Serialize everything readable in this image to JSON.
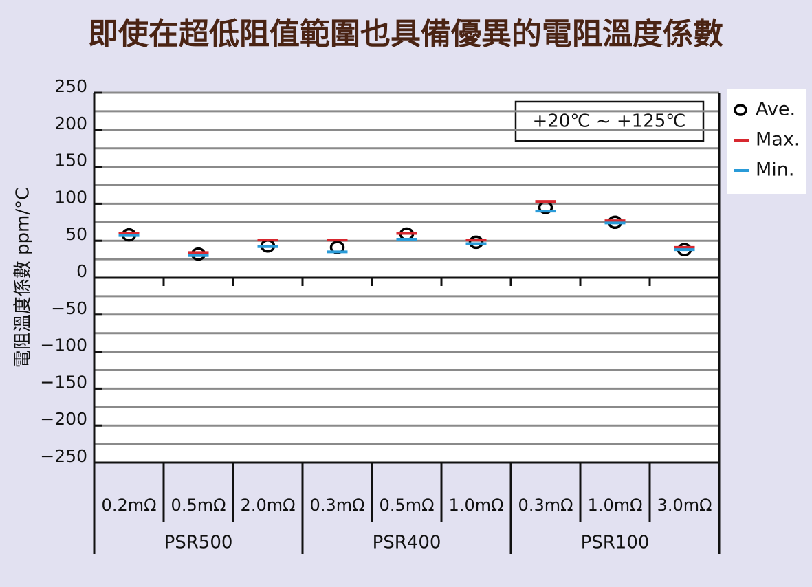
{
  "chart_data": {
    "type": "dot-range",
    "title": "即使在超低阻值範圍也具備優異的電阻溫度係數",
    "y_label": "電阻溫度係數  ppm/°C",
    "annotation": "+20℃ ~ +125℃",
    "categories": [
      "0.2mΩ",
      "0.5mΩ",
      "2.0mΩ",
      "0.3mΩ",
      "0.5mΩ",
      "1.0mΩ",
      "0.3mΩ",
      "1.0mΩ",
      "3.0mΩ"
    ],
    "groups": [
      "PSR500",
      "PSR400",
      "PSR100"
    ],
    "series": [
      {
        "name": "Ave.",
        "color": "#000000",
        "values": [
          58,
          32,
          43,
          41,
          59,
          48,
          95,
          75,
          38
        ]
      },
      {
        "name": "Max.",
        "color": "#d7282f",
        "values": [
          60,
          34,
          51,
          51,
          60,
          51,
          103,
          77,
          41
        ]
      },
      {
        "name": "Min.",
        "color": "#2a9bd8",
        "values": [
          57,
          30,
          42,
          35,
          52,
          46,
          90,
          74,
          38
        ]
      }
    ],
    "ylim": [
      -250,
      250
    ],
    "yticks": [
      {
        "value": -250,
        "label": "−250"
      },
      {
        "value": -200,
        "label": "−200"
      },
      {
        "value": -150,
        "label": "−150"
      },
      {
        "value": -100,
        "label": "−100"
      },
      {
        "value": -50,
        "label": "−50"
      },
      0,
      50,
      100,
      150,
      200,
      250
    ],
    "minor_yticks": [
      -225,
      -175,
      -125,
      -75,
      -25,
      25,
      75,
      125,
      175,
      225
    ],
    "grid": true,
    "legend": "outside-right-top"
  }
}
